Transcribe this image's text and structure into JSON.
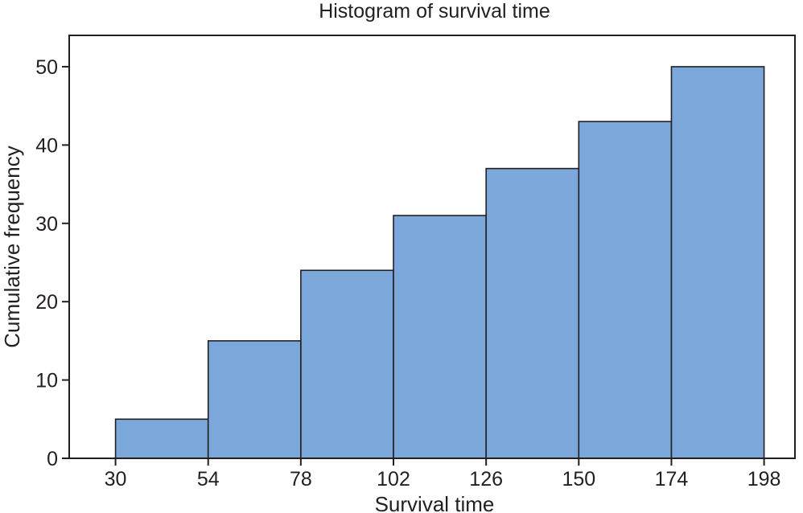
{
  "chart_data": {
    "type": "bar",
    "title": "Histogram of survival time",
    "xlabel": "Survival time",
    "ylabel": "Cumulative frequency",
    "bin_edges": [
      30,
      54,
      78,
      102,
      126,
      150,
      174,
      198
    ],
    "values": [
      5,
      15,
      24,
      31,
      37,
      43,
      50
    ],
    "xticks": [
      30,
      54,
      78,
      102,
      126,
      150,
      174,
      198
    ],
    "yticks": [
      0,
      10,
      20,
      30,
      40,
      50
    ],
    "xlim": [
      18,
      206
    ],
    "ylim": [
      0,
      54
    ],
    "grid": false,
    "colors": {
      "bar_fill": "#7ba7da",
      "bar_edge": "#231f20",
      "axes": "#231f20"
    }
  }
}
